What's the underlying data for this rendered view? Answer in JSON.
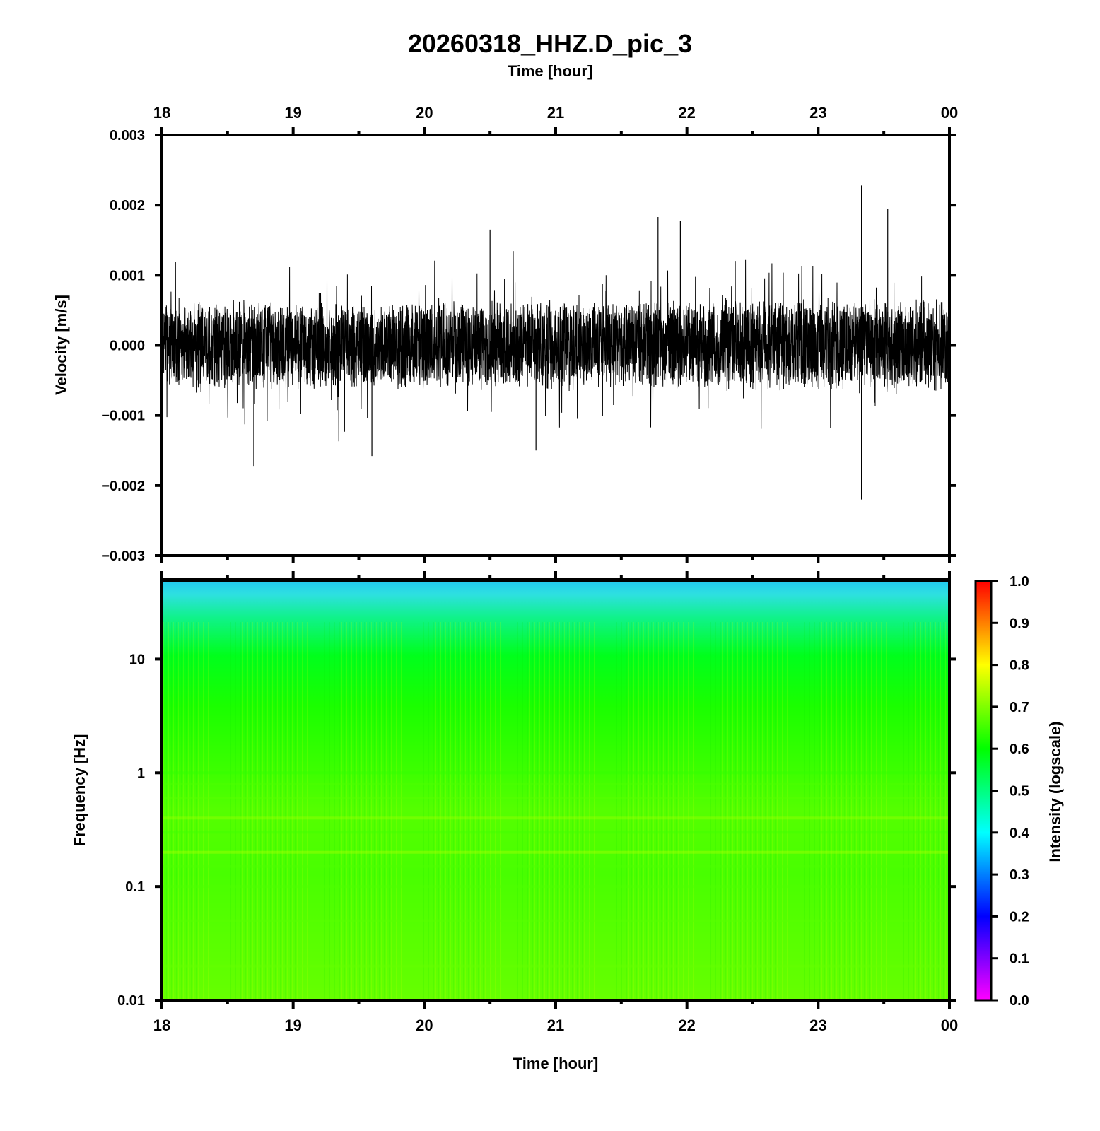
{
  "title": "20260318_HHZ.D_pic_3",
  "chart_data": [
    {
      "type": "line",
      "panel": "waveform",
      "title": "20260318_HHZ.D_pic_3",
      "top_xlabel": "Time [hour]",
      "xlabel": "",
      "ylabel": "Velocity [m/s]",
      "x_ticks": [
        "18",
        "19",
        "20",
        "21",
        "22",
        "23",
        "00"
      ],
      "xlim": [
        18,
        24
      ],
      "ylim": [
        -0.003,
        0.003
      ],
      "y_ticks": [
        "0.003",
        "0.002",
        "0.001",
        "0.000",
        "−0.001",
        "−0.002",
        "−0.003"
      ],
      "y_tick_values": [
        0.003,
        0.002,
        0.001,
        0,
        -0.001,
        -0.002,
        -0.003
      ],
      "series": [
        {
          "color": "#000000",
          "envelope": {
            "x": [
              18.0,
              18.5,
              19.0,
              19.5,
              20.0,
              20.5,
              21.0,
              21.5,
              22.0,
              22.5,
              23.0,
              23.5,
              24.0
            ],
            "typical_amplitude": [
              0.00055,
              0.0006,
              0.0006,
              0.00058,
              0.0006,
              0.00058,
              0.0006,
              0.00058,
              0.00062,
              0.00062,
              0.00063,
              0.00063,
              0.00062
            ]
          },
          "peaks": [
            {
              "x": 18.7,
              "y": -0.00172
            },
            {
              "x": 19.6,
              "y": -0.00158
            },
            {
              "x": 20.5,
              "y": 0.00165
            },
            {
              "x": 20.85,
              "y": -0.0015
            },
            {
              "x": 21.78,
              "y": 0.00183
            },
            {
              "x": 21.95,
              "y": 0.00178
            },
            {
              "x": 23.33,
              "y": 0.00228
            },
            {
              "x": 23.33,
              "y": -0.0022
            },
            {
              "x": 23.53,
              "y": 0.00195
            }
          ]
        }
      ],
      "grid": false,
      "legend": "none"
    },
    {
      "type": "heatmap",
      "panel": "spectrogram",
      "xlabel": "Time [hour]",
      "ylabel": "Frequency [Hz]",
      "x_ticks": [
        "18",
        "19",
        "20",
        "21",
        "22",
        "23",
        "00"
      ],
      "xlim": [
        18,
        24
      ],
      "y_scale": "log",
      "ylim": [
        0.01,
        50
      ],
      "y_ticks": [
        "10",
        "1",
        "0.1",
        "0.01"
      ],
      "y_tick_values": [
        10,
        1,
        0.1,
        0.01
      ],
      "intensity_by_frequency": {
        "frequency_hz": [
          50,
          40,
          30,
          20,
          10,
          5,
          2,
          1,
          0.8,
          0.6,
          0.4,
          0.3,
          0.2,
          0.15,
          0.1,
          0.05,
          0.02,
          0.01
        ],
        "intensity": [
          0.42,
          0.45,
          0.5,
          0.56,
          0.6,
          0.62,
          0.63,
          0.64,
          0.66,
          0.67,
          0.72,
          0.65,
          0.73,
          0.66,
          0.66,
          0.67,
          0.68,
          0.69
        ]
      },
      "colorbar": {
        "label": "Intensity (logscale)",
        "range": [
          0.0,
          1.0
        ],
        "ticks": [
          "1.0",
          "0.9",
          "0.8",
          "0.7",
          "0.6",
          "0.5",
          "0.4",
          "0.3",
          "0.2",
          "0.1",
          "0.0"
        ],
        "colormap": [
          "#ff00ff",
          "#0000ff",
          "#00ffff",
          "#00ff00",
          "#ffff00",
          "#ff0000"
        ],
        "placement": "right"
      },
      "grid": false
    }
  ]
}
